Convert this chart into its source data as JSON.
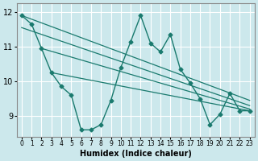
{
  "xlabel": "Humidex (Indice chaleur)",
  "xlim": [
    -0.5,
    23.5
  ],
  "ylim": [
    8.4,
    12.25
  ],
  "yticks": [
    9,
    10,
    11,
    12
  ],
  "xticks": [
    0,
    1,
    2,
    3,
    4,
    5,
    6,
    7,
    8,
    9,
    10,
    11,
    12,
    13,
    14,
    15,
    16,
    17,
    18,
    19,
    20,
    21,
    22,
    23
  ],
  "bg_color": "#cce8ec",
  "grid_color": "#ffffff",
  "line_color": "#1a7a6e",
  "series_main_x": [
    0,
    1,
    2,
    3,
    4,
    5,
    6,
    7,
    8,
    9,
    10,
    11,
    12,
    13,
    14,
    15,
    16,
    17,
    18,
    19,
    20,
    21,
    22,
    23
  ],
  "series_main_y": [
    11.9,
    11.65,
    10.95,
    10.25,
    9.85,
    9.6,
    8.6,
    8.6,
    8.75,
    9.45,
    10.4,
    11.15,
    11.9,
    11.1,
    10.85,
    11.35,
    10.35,
    9.95,
    9.5,
    8.75,
    9.05,
    9.65,
    9.15,
    9.15
  ],
  "trend_lines": [
    {
      "x": [
        0,
        23
      ],
      "y": [
        11.9,
        9.45
      ]
    },
    {
      "x": [
        0,
        23
      ],
      "y": [
        11.55,
        9.3
      ]
    },
    {
      "x": [
        2,
        23
      ],
      "y": [
        10.95,
        9.2
      ]
    },
    {
      "x": [
        3,
        23
      ],
      "y": [
        10.25,
        9.15
      ]
    }
  ]
}
